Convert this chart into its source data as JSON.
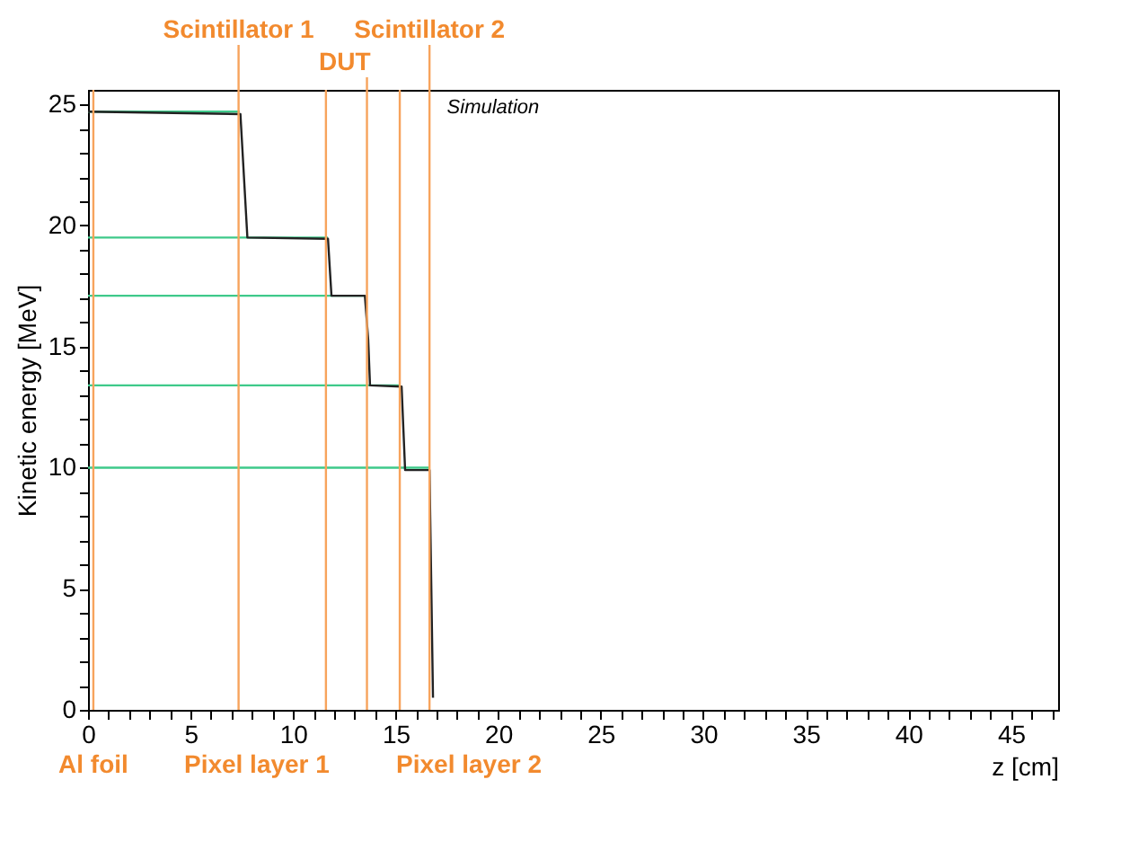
{
  "chart_data": {
    "type": "line",
    "xlabel": "z [cm]",
    "ylabel": "Kinetic energy [MeV]",
    "xlim": [
      0,
      47.3
    ],
    "ylim": [
      0,
      25.6
    ],
    "xticks": [
      0,
      {
        "value": 1,
        "label": null
      },
      {
        "value": 2,
        "label": null
      },
      {
        "value": 3,
        "label": null
      },
      {
        "value": 4,
        "label": null
      },
      5,
      {
        "value": 6,
        "label": null
      },
      {
        "value": 7,
        "label": null
      },
      {
        "value": 8,
        "label": null
      },
      {
        "value": 9,
        "label": null
      },
      10,
      {
        "value": 11,
        "label": null
      },
      {
        "value": 12,
        "label": null
      },
      {
        "value": 13,
        "label": null
      },
      {
        "value": 14,
        "label": null
      },
      15,
      {
        "value": 16,
        "label": null
      },
      {
        "value": 17,
        "label": null
      },
      {
        "value": 18,
        "label": null
      },
      {
        "value": 19,
        "label": null
      },
      20,
      {
        "value": 21,
        "label": null
      },
      {
        "value": 22,
        "label": null
      },
      {
        "value": 23,
        "label": null
      },
      {
        "value": 24,
        "label": null
      },
      25,
      {
        "value": 26,
        "label": null
      },
      {
        "value": 27,
        "label": null
      },
      {
        "value": 28,
        "label": null
      },
      {
        "value": 29,
        "label": null
      },
      30,
      {
        "value": 31,
        "label": null
      },
      {
        "value": 32,
        "label": null
      },
      {
        "value": 33,
        "label": null
      },
      {
        "value": 34,
        "label": null
      },
      35,
      {
        "value": 36,
        "label": null
      },
      {
        "value": 37,
        "label": null
      },
      {
        "value": 38,
        "label": null
      },
      {
        "value": 39,
        "label": null
      },
      40,
      {
        "value": 41,
        "label": null
      },
      {
        "value": 42,
        "label": null
      },
      {
        "value": 43,
        "label": null
      },
      {
        "value": 44,
        "label": null
      },
      45,
      {
        "value": 46,
        "label": null
      },
      {
        "value": 47,
        "label": null
      }
    ],
    "yticks": [
      0,
      {
        "value": 1,
        "label": null
      },
      {
        "value": 2,
        "label": null
      },
      {
        "value": 3,
        "label": null
      },
      {
        "value": 4,
        "label": null
      },
      5,
      {
        "value": 6,
        "label": null
      },
      {
        "value": 7,
        "label": null
      },
      {
        "value": 8,
        "label": null
      },
      {
        "value": 9,
        "label": null
      },
      10,
      {
        "value": 11,
        "label": null
      },
      {
        "value": 12,
        "label": null
      },
      {
        "value": 13,
        "label": null
      },
      {
        "value": 14,
        "label": null
      },
      15,
      {
        "value": 16,
        "label": null
      },
      {
        "value": 17,
        "label": null
      },
      {
        "value": 18,
        "label": null
      },
      {
        "value": 19,
        "label": null
      },
      20,
      {
        "value": 21,
        "label": null
      },
      {
        "value": 22,
        "label": null
      },
      {
        "value": 23,
        "label": null
      },
      {
        "value": 24,
        "label": null
      },
      25
    ],
    "grid": false,
    "series": [
      {
        "color": "#3ec98a",
        "x": [
          0,
          7.4
        ],
        "values": [
          24.7,
          24.7
        ]
      },
      {
        "color": "#3ec98a",
        "x": [
          0,
          11.7
        ],
        "values": [
          19.5,
          19.5
        ]
      },
      {
        "color": "#3ec98a",
        "x": [
          0,
          13.5
        ],
        "values": [
          17.1,
          17.1
        ]
      },
      {
        "color": "#3ec98a",
        "x": [
          0,
          15.2
        ],
        "values": [
          13.4,
          13.4
        ]
      },
      {
        "color": "#3ec98a",
        "x": [
          0,
          16.65
        ],
        "values": [
          10.0,
          10.0
        ]
      },
      {
        "color": "#222222",
        "x": [
          0,
          7.43,
          7.77,
          11.7,
          11.87,
          13.5,
          13.66,
          13.75,
          15.29,
          15.46,
          16.65,
          16.82
        ],
        "values": [
          24.7,
          24.6,
          19.5,
          19.45,
          17.1,
          17.1,
          15.3,
          13.4,
          13.35,
          9.9,
          9.9,
          0.5
        ]
      }
    ],
    "ref_lines": [
      {
        "axis": "x",
        "value": 0.26,
        "label": "Al foil",
        "color": "#f7a35c"
      },
      {
        "axis": "x",
        "value": 7.34,
        "label": "Scintillator 1",
        "color": "#f7a35c"
      },
      {
        "axis": "x",
        "value": 11.6,
        "label": "Pixel layer 1",
        "color": "#f7a35c"
      },
      {
        "axis": "x",
        "value": 13.6,
        "label": "DUT",
        "color": "#f7a35c"
      },
      {
        "axis": "x",
        "value": 15.2,
        "label": "Pixel layer 2",
        "color": "#f7a35c"
      },
      {
        "axis": "x",
        "value": 16.65,
        "label": "Scintillator 2",
        "color": "#f7a35c"
      }
    ],
    "annotations": [
      "Simulation"
    ]
  }
}
